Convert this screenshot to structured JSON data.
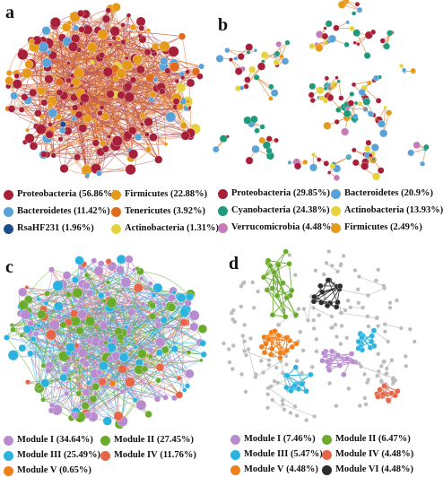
{
  "colors": {
    "proteobacteria": "#a7203a",
    "bacteroidetes": "#5aa3d8",
    "rsahf231": "#1c4e8c",
    "firmicutes": "#e59a1a",
    "tenericutes": "#e26a1b",
    "actinobacteria": "#e6d23c",
    "cyanobacteria": "#1f9a7a",
    "verrucomicrobia": "#c77ab8",
    "module1": "#b98ccf",
    "module2": "#6aab2c",
    "module3": "#2bb3df",
    "module4": "#e7664a",
    "module5": "#ef7f1a",
    "module6": "#2c2c2c",
    "edge_orange": "#e0782a",
    "edge_gray": "#b9b9b9",
    "node_gray": "#bcbcbc"
  },
  "panels": [
    {
      "letter": "a",
      "legend": [
        {
          "name": "Proteobacteria",
          "pct": "(56.86%)",
          "color_key": "proteobacteria"
        },
        {
          "name": "Firmicutes",
          "pct": "(22.88%)",
          "color_key": "firmicutes"
        },
        {
          "name": "Bacteroidetes",
          "pct": "(11.42%)",
          "color_key": "bacteroidetes"
        },
        {
          "name": "Tenericutes",
          "pct": "(3.92%)",
          "color_key": "tenericutes"
        },
        {
          "name": "RsaHF231",
          "pct": "(1.96%)",
          "color_key": "rsahf231"
        },
        {
          "name": "Actinobacteria",
          "pct": "(1.31%)",
          "color_key": "actinobacteria"
        }
      ]
    },
    {
      "letter": "b",
      "legend": [
        {
          "name": "Proteobacteria",
          "pct": "(29.85%)",
          "color_key": "proteobacteria"
        },
        {
          "name": "Bacteroidetes",
          "pct": "(20.9%)",
          "color_key": "bacteroidetes"
        },
        {
          "name": "Cyanobacteria",
          "pct": "(24.38%)",
          "color_key": "cyanobacteria"
        },
        {
          "name": "Actinobacteria",
          "pct": "(13.93%)",
          "color_key": "actinobacteria"
        },
        {
          "name": "Verrucomicrobia",
          "pct": "(4.48%)",
          "color_key": "verrucomicrobia"
        },
        {
          "name": "Firmicutes",
          "pct": "(2.49%)",
          "color_key": "firmicutes"
        }
      ]
    },
    {
      "letter": "c",
      "legend": [
        {
          "name": "Module I",
          "pct": "(34.64%)",
          "color_key": "module1"
        },
        {
          "name": "Module II",
          "pct": "(27.45%)",
          "color_key": "module2"
        },
        {
          "name": "Module III",
          "pct": "(25.49%)",
          "color_key": "module3"
        },
        {
          "name": "Module IV",
          "pct": "(11.76%)",
          "color_key": "module4"
        },
        {
          "name": "Module V",
          "pct": "(0.65%)",
          "color_key": "module5"
        }
      ]
    },
    {
      "letter": "d",
      "legend": [
        {
          "name": "Module I",
          "pct": "(7.46%)",
          "color_key": "module1"
        },
        {
          "name": "Module II",
          "pct": "(6.47%)",
          "color_key": "module2"
        },
        {
          "name": "Module III",
          "pct": "(5.47%)",
          "color_key": "module3"
        },
        {
          "name": "Module IV",
          "pct": "(4.48%)",
          "color_key": "module4"
        },
        {
          "name": "Module V",
          "pct": "(4.48%)",
          "color_key": "module5"
        },
        {
          "name": "Module VI",
          "pct": "(4.48%)",
          "color_key": "module6"
        }
      ]
    }
  ]
}
